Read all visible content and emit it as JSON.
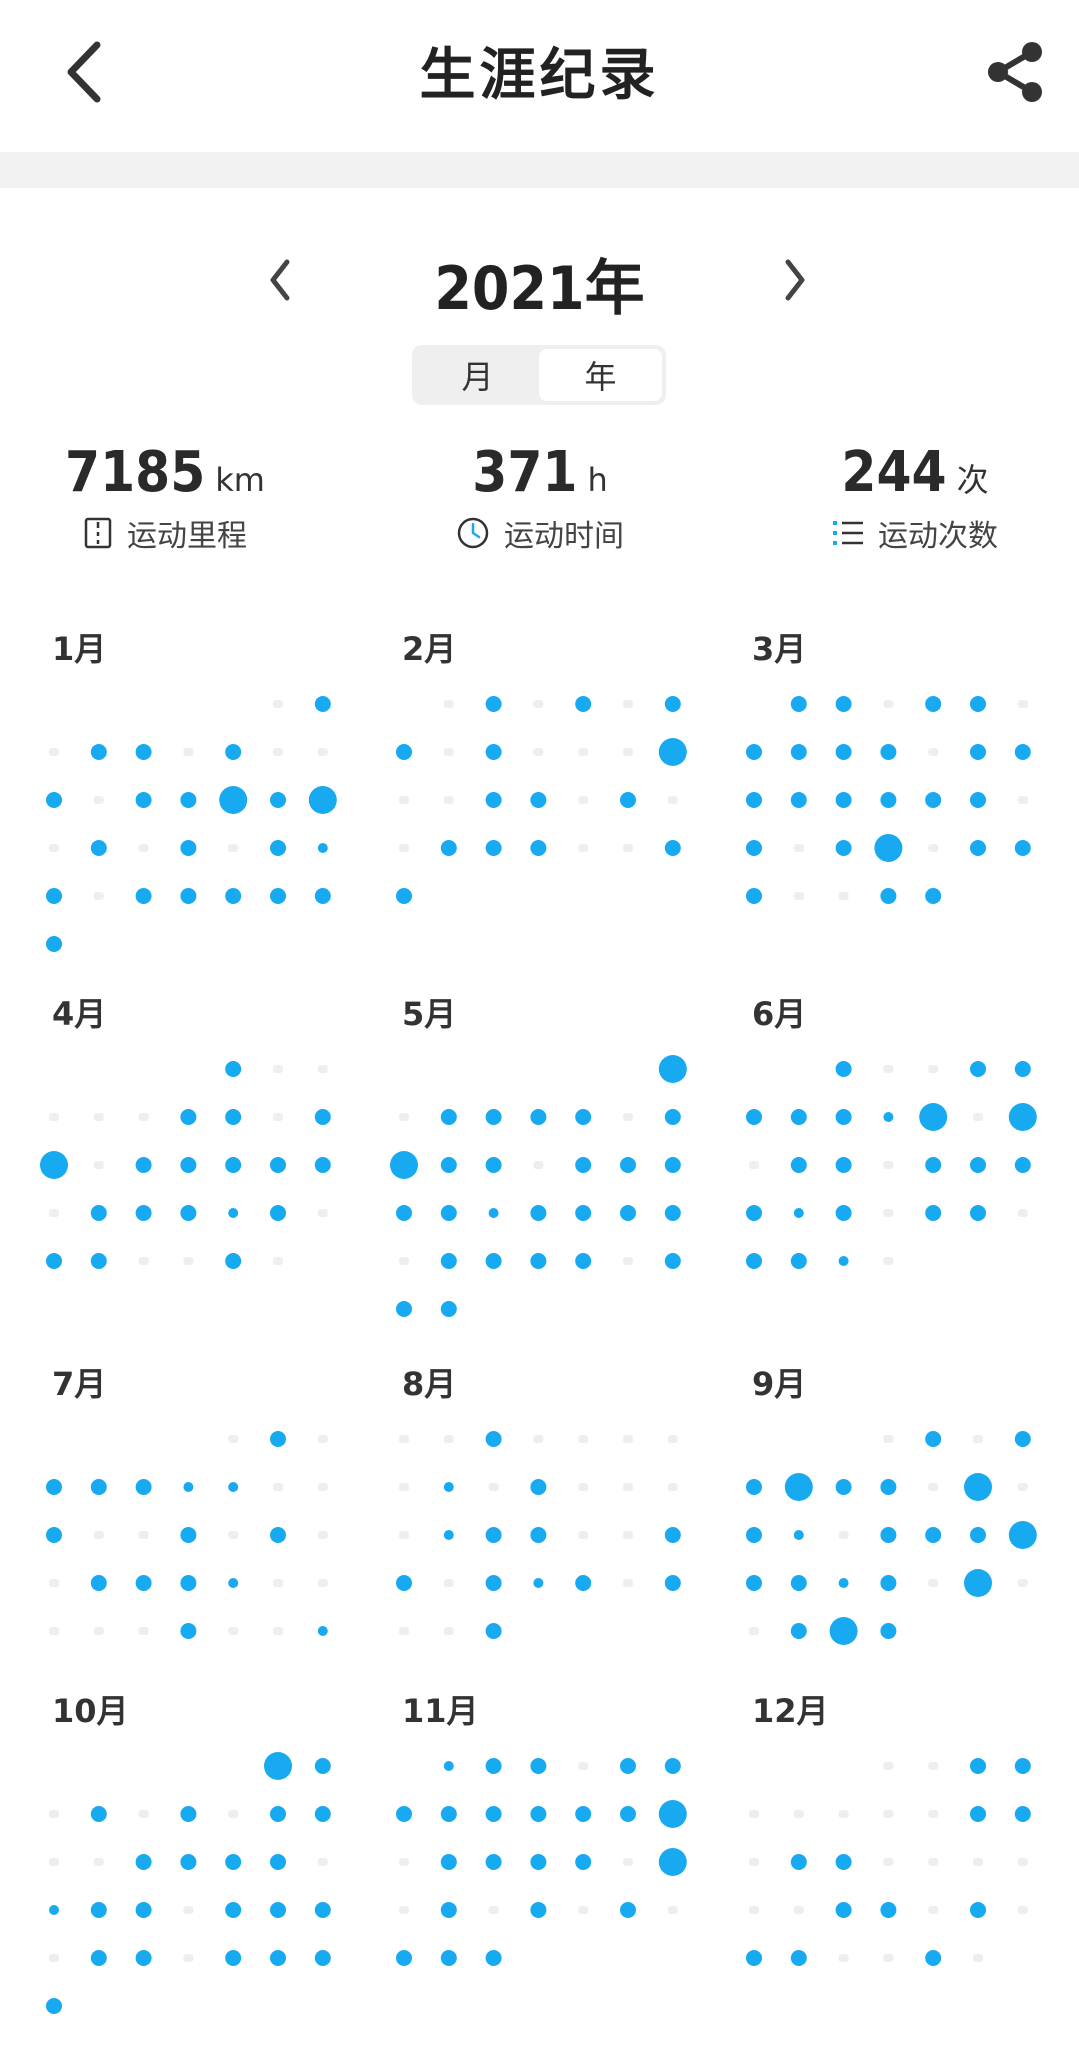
{
  "header": {
    "title": "生涯纪录",
    "back_icon": "chevron-left-icon",
    "share_icon": "share-icon"
  },
  "year_nav": {
    "year_label": "2021年"
  },
  "segment": {
    "month_label": "月",
    "year_label": "年",
    "active": "年"
  },
  "stats": {
    "distance": {
      "value": "7185",
      "unit": "km",
      "label": "运动里程",
      "icon": "road-icon"
    },
    "time": {
      "value": "371",
      "unit": "h",
      "label": "运动时间",
      "icon": "clock-icon"
    },
    "count": {
      "value": "244",
      "unit": "次",
      "label": "运动次数",
      "icon": "list-icon"
    }
  },
  "colors": {
    "accent": "#18aaf0",
    "empty_dot": "#eeeeee"
  },
  "months": [
    {
      "label": "1月",
      "first_weekday": 5,
      "days": [
        0,
        2,
        0,
        2,
        2,
        0,
        2,
        0,
        0,
        2,
        0,
        2,
        2,
        3,
        2,
        3,
        0,
        2,
        0,
        2,
        0,
        2,
        1,
        2,
        0,
        2,
        2,
        2,
        2,
        2,
        2
      ]
    },
    {
      "label": "2月",
      "first_weekday": 1,
      "days": [
        0,
        2,
        0,
        2,
        0,
        2,
        2,
        0,
        2,
        0,
        0,
        0,
        3,
        0,
        0,
        2,
        2,
        0,
        2,
        0,
        0,
        2,
        2,
        2,
        0,
        0,
        2,
        2
      ]
    },
    {
      "label": "3月",
      "first_weekday": 1,
      "days": [
        2,
        2,
        0,
        2,
        2,
        0,
        2,
        2,
        2,
        2,
        0,
        2,
        2,
        2,
        2,
        2,
        2,
        2,
        2,
        0,
        2,
        0,
        2,
        3,
        0,
        2,
        2,
        2,
        0,
        0,
        2,
        2
      ]
    },
    {
      "label": "4月",
      "first_weekday": 4,
      "days": [
        2,
        0,
        0,
        0,
        0,
        0,
        2,
        2,
        0,
        2,
        3,
        0,
        2,
        2,
        2,
        2,
        2,
        0,
        2,
        2,
        2,
        1,
        2,
        0,
        2,
        2,
        0,
        0,
        2,
        0
      ]
    },
    {
      "label": "5月",
      "first_weekday": 6,
      "days": [
        3,
        0,
        2,
        2,
        2,
        2,
        0,
        2,
        3,
        2,
        2,
        0,
        2,
        2,
        2,
        2,
        2,
        1,
        2,
        2,
        2,
        2,
        0,
        2,
        2,
        2,
        2,
        0,
        2,
        2,
        2
      ]
    },
    {
      "label": "6月",
      "first_weekday": 2,
      "days": [
        2,
        0,
        0,
        2,
        2,
        2,
        2,
        2,
        1,
        3,
        0,
        3,
        0,
        2,
        2,
        0,
        2,
        2,
        2,
        2,
        1,
        2,
        0,
        2,
        2,
        0,
        2,
        2,
        1,
        0
      ]
    },
    {
      "label": "7月",
      "first_weekday": 4,
      "days": [
        0,
        2,
        0,
        2,
        2,
        2,
        1,
        1,
        0,
        0,
        2,
        0,
        0,
        2,
        0,
        2,
        0,
        0,
        2,
        2,
        2,
        1,
        0,
        0,
        0,
        0,
        0,
        2,
        0,
        0,
        1
      ]
    },
    {
      "label": "8月",
      "first_weekday": 0,
      "days": [
        0,
        0,
        2,
        0,
        0,
        0,
        0,
        0,
        1,
        0,
        2,
        0,
        0,
        0,
        0,
        1,
        2,
        2,
        0,
        0,
        2,
        2,
        0,
        2,
        1,
        2,
        0,
        2,
        0,
        0,
        2
      ]
    },
    {
      "label": "9月",
      "first_weekday": 3,
      "days": [
        0,
        2,
        0,
        2,
        2,
        3,
        2,
        2,
        0,
        3,
        0,
        2,
        1,
        0,
        2,
        2,
        2,
        3,
        2,
        2,
        1,
        2,
        0,
        3,
        0,
        0,
        2,
        3,
        2
      ]
    },
    {
      "label": "10月",
      "first_weekday": 5,
      "days": [
        3,
        2,
        0,
        2,
        0,
        2,
        0,
        2,
        2,
        0,
        0,
        2,
        2,
        2,
        2,
        0,
        1,
        2,
        2,
        0,
        2,
        2,
        2,
        0,
        2,
        2,
        0,
        2,
        2,
        2,
        2
      ]
    },
    {
      "label": "11月",
      "first_weekday": 1,
      "days": [
        1,
        2,
        2,
        0,
        2,
        2,
        2,
        2,
        2,
        2,
        2,
        2,
        3,
        0,
        2,
        2,
        2,
        2,
        0,
        3,
        0,
        2,
        0,
        2,
        0,
        2,
        0,
        2,
        2,
        2
      ]
    },
    {
      "label": "12月",
      "first_weekday": 3,
      "days": [
        0,
        0,
        2,
        2,
        0,
        0,
        0,
        0,
        0,
        2,
        2,
        0,
        2,
        2,
        0,
        0,
        0,
        0,
        0,
        0,
        2,
        2,
        0,
        2,
        0,
        2,
        2,
        0,
        0,
        2,
        0
      ]
    }
  ]
}
